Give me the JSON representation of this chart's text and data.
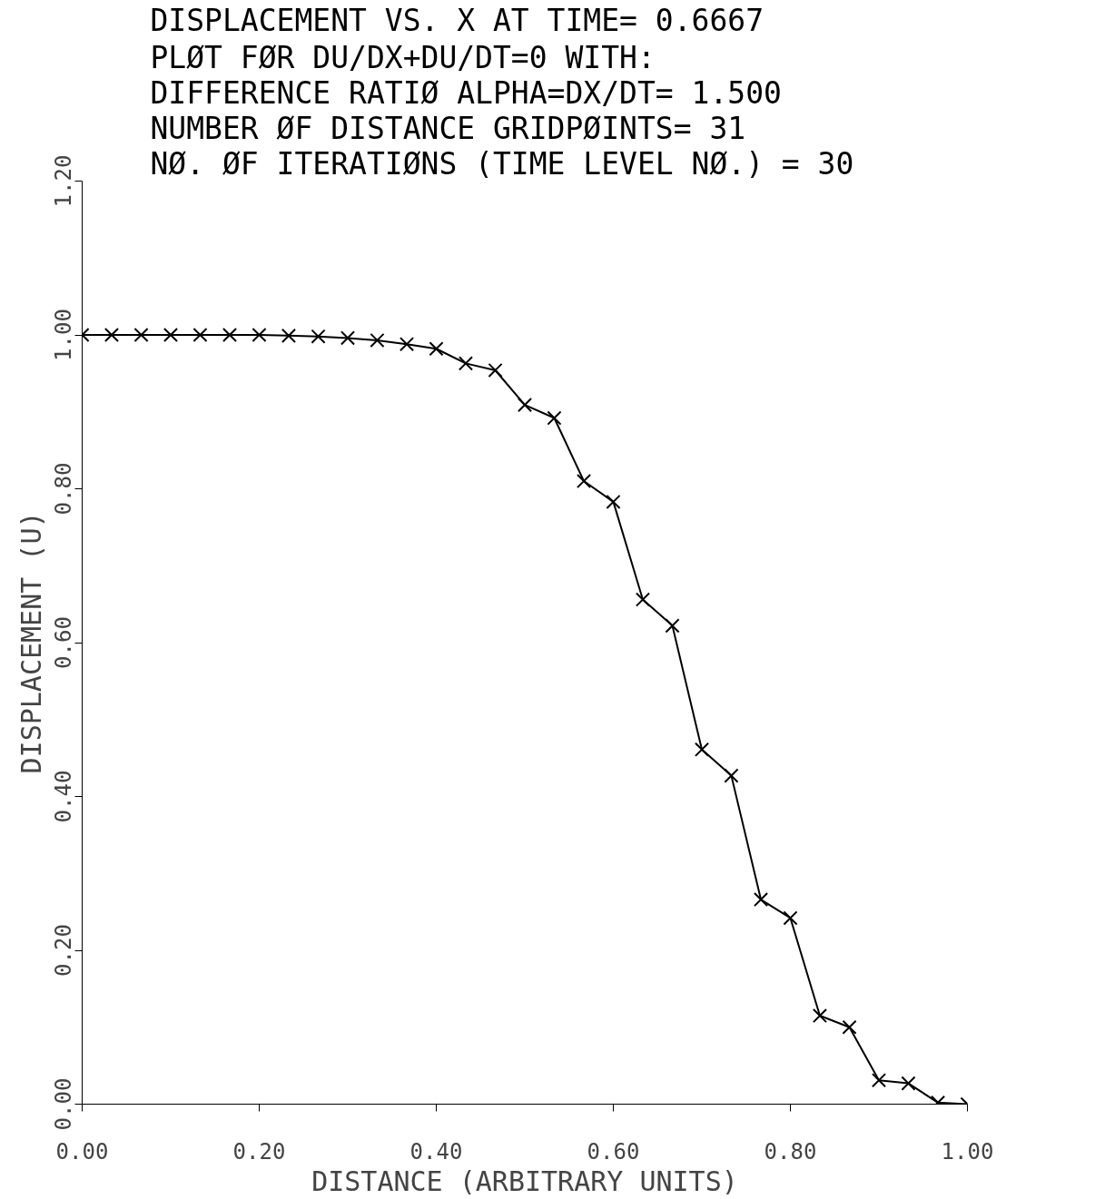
{
  "chart_data": {
    "type": "line",
    "title": "DISPLACEMENT VS. X AT   TIME= 0.6667",
    "subtitle": "PLØT FØR DU/DX+DU/DT=0 WITH:\nDIFFERENCE RATIØ ALPHA=DX/DT= 1.500\nNUMBER ØF DISTANCE GRIDPØINTS= 31\nNØ. ØF ITERATIØNS (TIME LEVEL NØ.) = 30",
    "xlabel": "DISTANCE (ARBITRARY UNITS)",
    "ylabel": "DISPLACEMENT (U)",
    "x": [
      0,
      0.0333,
      0.0667,
      0.1,
      0.1333,
      0.1667,
      0.2,
      0.2333,
      0.2667,
      0.3,
      0.3333,
      0.3667,
      0.4,
      0.4333,
      0.4667,
      0.5,
      0.5333,
      0.5667,
      0.6,
      0.6333,
      0.6667,
      0.7,
      0.7333,
      0.7667,
      0.8,
      0.8333,
      0.8667,
      0.9,
      0.9333,
      0.9667,
      1.0
    ],
    "series": [
      {
        "color": "#000000",
        "values": [
          1.0,
          1.0,
          1.0,
          1.0,
          1.0,
          1.0,
          1.0,
          0.999,
          0.998,
          0.996,
          0.993,
          0.988,
          0.982,
          0.963,
          0.954,
          0.909,
          0.892,
          0.81,
          0.783,
          0.656,
          0.622,
          0.461,
          0.427,
          0.266,
          0.242,
          0.115,
          0.1,
          0.031,
          0.027,
          0.002,
          0.0
        ]
      }
    ],
    "xlim": [
      0,
      1.0
    ],
    "ylim": [
      0,
      1.2
    ],
    "xticks": [
      {
        "value": 0,
        "label": "0.00"
      },
      {
        "value": 0.2,
        "label": "0.20"
      },
      {
        "value": 0.4,
        "label": "0.40"
      },
      {
        "value": 0.6,
        "label": "0.60"
      },
      {
        "value": 0.8,
        "label": "0.80"
      },
      {
        "value": 1.0,
        "label": "1.00"
      }
    ],
    "yticks": [
      {
        "value": 0,
        "label": "0.00"
      },
      {
        "value": 0.2,
        "label": "0.20"
      },
      {
        "value": 0.4,
        "label": "0.40"
      },
      {
        "value": 0.6,
        "label": "0.60"
      },
      {
        "value": 0.8,
        "label": "0.80"
      },
      {
        "value": 1.0,
        "label": "1.00"
      },
      {
        "value": 1.2,
        "label": "1.20"
      }
    ],
    "grid": false,
    "marker": "cross",
    "line_style": "solid"
  }
}
